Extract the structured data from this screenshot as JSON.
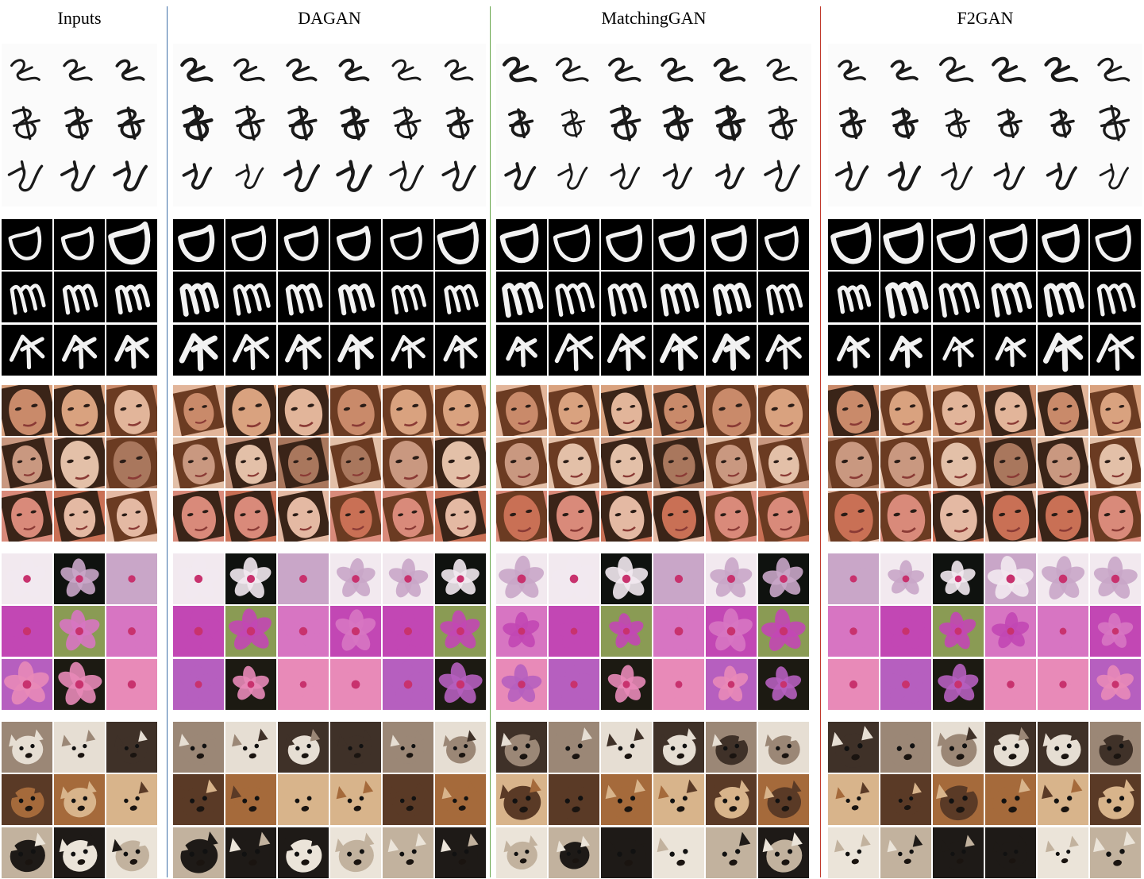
{
  "columns": [
    {
      "title": "Inputs"
    },
    {
      "title": "DAGAN"
    },
    {
      "title": "MatchingGAN"
    },
    {
      "title": "F2GAN"
    }
  ],
  "divider_colors": [
    "#3f6fa8",
    "#6aa84f",
    "#c0392b"
  ],
  "rows": [
    {
      "dataset": "omniglot",
      "style": "handwritten-ink-on-white",
      "class": "a"
    },
    {
      "dataset": "omniglot",
      "style": "handwritten-ink-on-white",
      "class": "b"
    },
    {
      "dataset": "omniglot",
      "style": "handwritten-ink-on-white",
      "class": "c"
    },
    {
      "dataset": "emnist",
      "style": "white-stroke-on-black",
      "class": "a"
    },
    {
      "dataset": "emnist",
      "style": "white-stroke-on-black",
      "class": "b"
    },
    {
      "dataset": "emnist",
      "style": "white-stroke-on-black",
      "class": "c"
    },
    {
      "dataset": "faces",
      "palette": [
        "#d9a27f",
        "#c98a6a",
        "#e2b59a"
      ]
    },
    {
      "dataset": "faces",
      "palette": [
        "#c99880",
        "#a9775d",
        "#e3c0a8"
      ]
    },
    {
      "dataset": "faces",
      "palette": [
        "#c97055",
        "#e4b9a3",
        "#d98a7a"
      ]
    },
    {
      "dataset": "flowers",
      "palette": [
        "#0f120f",
        "#c9a6c8",
        "#f2e9ef"
      ]
    },
    {
      "dataset": "flowers",
      "palette": [
        "#8a9b54",
        "#d775c2",
        "#c247b4"
      ]
    },
    {
      "dataset": "flowers",
      "palette": [
        "#1c1a12",
        "#e88ab8",
        "#b65fbf"
      ]
    },
    {
      "dataset": "animals",
      "palette": [
        "#e6ded3",
        "#3f3128",
        "#9b8776"
      ]
    },
    {
      "dataset": "animals",
      "palette": [
        "#a56a3b",
        "#d8b48b",
        "#5a3a26"
      ]
    },
    {
      "dataset": "animals",
      "palette": [
        "#1e1a17",
        "#ebe4d9",
        "#c2b29e"
      ]
    }
  ]
}
